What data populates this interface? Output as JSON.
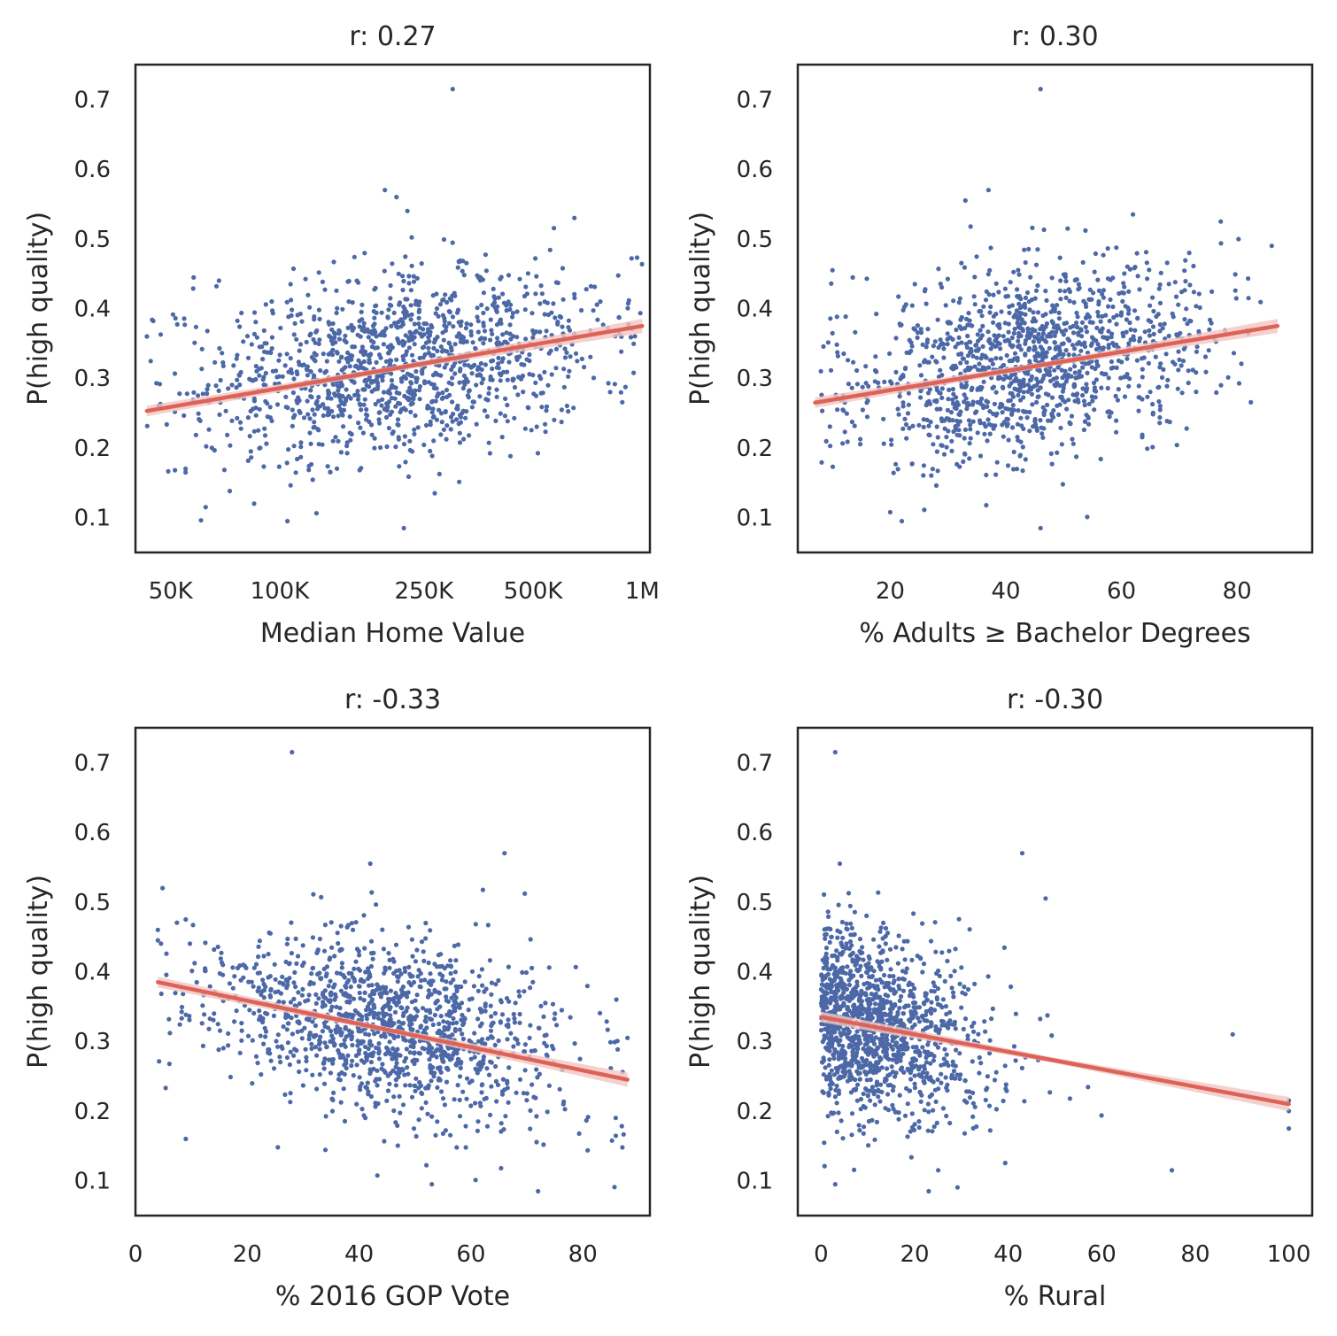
{
  "chart_data": [
    {
      "type": "scatter",
      "title": "r: 0.27",
      "xlabel": "Median Home Value",
      "ylabel": "P(high quality)",
      "x_scale": "log",
      "xlim": [
        40000,
        1050000
      ],
      "ylim": [
        0.05,
        0.75
      ],
      "x_ticks": [
        50000,
        100000,
        250000,
        500000,
        1000000
      ],
      "x_tick_labels": [
        "50K",
        "100K",
        "250K",
        "500K",
        "1M"
      ],
      "y_ticks": [
        0.1,
        0.2,
        0.3,
        0.4,
        0.5,
        0.6,
        0.7
      ],
      "y_tick_labels": [
        "0.1",
        "0.2",
        "0.3",
        "0.4",
        "0.5",
        "0.6",
        "0.7"
      ],
      "x_center": 220000,
      "x_spread": 0.28,
      "x_min": 43000,
      "x_max": 1000000,
      "y_center": 0.32,
      "y_spread": 0.07,
      "correlation": 0.27,
      "point_count": 1300,
      "outliers": [
        {
          "x": 43000,
          "y": 0.36
        },
        {
          "x": 55000,
          "y": 0.17
        },
        {
          "x": 55000,
          "y": 0.165
        },
        {
          "x": 68000,
          "y": 0.44
        },
        {
          "x": 195000,
          "y": 0.57
        },
        {
          "x": 210000,
          "y": 0.56
        },
        {
          "x": 225000,
          "y": 0.54
        },
        {
          "x": 300000,
          "y": 0.715
        },
        {
          "x": 220000,
          "y": 0.085
        },
        {
          "x": 105000,
          "y": 0.095
        },
        {
          "x": 85000,
          "y": 0.12
        },
        {
          "x": 650000,
          "y": 0.53
        }
      ],
      "regression": {
        "x0": 43000,
        "y0": 0.253,
        "x1": 1000000,
        "y1": 0.375
      }
    },
    {
      "type": "scatter",
      "title": "r: 0.30",
      "xlabel": "% Adults ≥ Bachelor Degrees",
      "ylabel": "P(high quality)",
      "x_scale": "linear",
      "xlim": [
        4,
        93
      ],
      "ylim": [
        0.05,
        0.75
      ],
      "x_ticks": [
        20,
        40,
        60,
        80
      ],
      "x_tick_labels": [
        "20",
        "40",
        "60",
        "80"
      ],
      "y_ticks": [
        0.1,
        0.2,
        0.3,
        0.4,
        0.5,
        0.6,
        0.7
      ],
      "y_tick_labels": [
        "0.1",
        "0.2",
        "0.3",
        "0.4",
        "0.5",
        "0.6",
        "0.7"
      ],
      "x_center": 44,
      "x_spread": 15,
      "x_min": 8,
      "x_max": 86,
      "y_center": 0.32,
      "y_spread": 0.07,
      "correlation": 0.3,
      "point_count": 1300,
      "outliers": [
        {
          "x": 8,
          "y": 0.31
        },
        {
          "x": 10,
          "y": 0.455
        },
        {
          "x": 37,
          "y": 0.57
        },
        {
          "x": 33,
          "y": 0.555
        },
        {
          "x": 46,
          "y": 0.715
        },
        {
          "x": 46,
          "y": 0.085
        },
        {
          "x": 22,
          "y": 0.095
        },
        {
          "x": 62,
          "y": 0.535
        },
        {
          "x": 86,
          "y": 0.49
        }
      ],
      "regression": {
        "x0": 7,
        "y0": 0.265,
        "x1": 87,
        "y1": 0.375
      }
    },
    {
      "type": "scatter",
      "title": "r: -0.33",
      "xlabel": "% 2016 GOP Vote",
      "ylabel": "P(high quality)",
      "x_scale": "linear",
      "xlim": [
        0,
        92
      ],
      "ylim": [
        0.05,
        0.75
      ],
      "x_ticks": [
        0,
        20,
        40,
        60,
        80
      ],
      "x_tick_labels": [
        "0",
        "20",
        "40",
        "60",
        "80"
      ],
      "y_ticks": [
        0.1,
        0.2,
        0.3,
        0.4,
        0.5,
        0.6,
        0.7
      ],
      "y_tick_labels": [
        "0.1",
        "0.2",
        "0.3",
        "0.4",
        "0.5",
        "0.6",
        "0.7"
      ],
      "x_center": 45,
      "x_spread": 16,
      "x_min": 4,
      "x_max": 88,
      "y_center": 0.32,
      "y_spread": 0.07,
      "correlation": -0.33,
      "point_count": 1300,
      "outliers": [
        {
          "x": 4,
          "y": 0.46
        },
        {
          "x": 4,
          "y": 0.445
        },
        {
          "x": 9,
          "y": 0.475
        },
        {
          "x": 9,
          "y": 0.16
        },
        {
          "x": 28,
          "y": 0.715
        },
        {
          "x": 42,
          "y": 0.555
        },
        {
          "x": 66,
          "y": 0.57
        },
        {
          "x": 72,
          "y": 0.085
        },
        {
          "x": 53,
          "y": 0.095
        },
        {
          "x": 86,
          "y": 0.36
        },
        {
          "x": 88,
          "y": 0.305
        }
      ],
      "regression": {
        "x0": 4,
        "y0": 0.385,
        "x1": 88,
        "y1": 0.245
      }
    },
    {
      "type": "scatter",
      "title": "r: -0.30",
      "xlabel": "% Rural",
      "ylabel": "P(high quality)",
      "x_scale": "linear",
      "xlim": [
        -5,
        105
      ],
      "ylim": [
        0.05,
        0.75
      ],
      "x_ticks": [
        0,
        20,
        40,
        60,
        80,
        100
      ],
      "x_tick_labels": [
        "0",
        "20",
        "40",
        "60",
        "80",
        "100"
      ],
      "y_ticks": [
        0.1,
        0.2,
        0.3,
        0.4,
        0.5,
        0.6,
        0.7
      ],
      "y_tick_labels": [
        "0.1",
        "0.2",
        "0.3",
        "0.4",
        "0.5",
        "0.6",
        "0.7"
      ],
      "x_center": 0,
      "x_spread": 16,
      "x_min": 0,
      "x_max": 100,
      "y_center": 0.32,
      "y_spread": 0.07,
      "correlation": -0.3,
      "point_count": 1300,
      "outliers": [
        {
          "x": 3,
          "y": 0.715
        },
        {
          "x": 4,
          "y": 0.555
        },
        {
          "x": 43,
          "y": 0.57
        },
        {
          "x": 48,
          "y": 0.505
        },
        {
          "x": 23,
          "y": 0.085
        },
        {
          "x": 3,
          "y": 0.095
        },
        {
          "x": 100,
          "y": 0.215
        },
        {
          "x": 100,
          "y": 0.2
        },
        {
          "x": 100,
          "y": 0.175
        },
        {
          "x": 75,
          "y": 0.115
        },
        {
          "x": 88,
          "y": 0.31
        }
      ],
      "regression": {
        "x0": 0,
        "y0": 0.335,
        "x1": 100,
        "y1": 0.21
      }
    }
  ]
}
